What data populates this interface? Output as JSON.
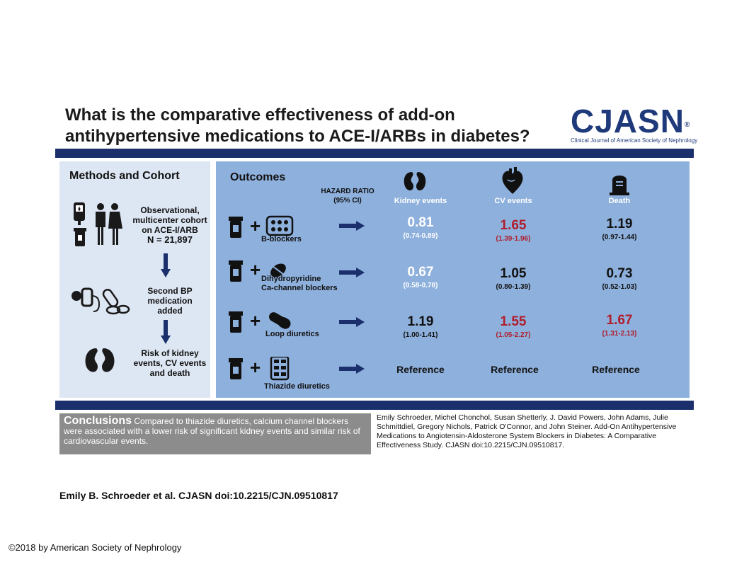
{
  "title": {
    "line1": "What is the comparative effectiveness of add-on",
    "line2": "antihypertensive medications to ACE-I/ARBs in diabetes?"
  },
  "logo": {
    "name": "CJASN",
    "subtitle": "Clinical Journal of American Society of Nephrology"
  },
  "methods": {
    "heading": "Methods and Cohort",
    "step1": [
      "Observational,",
      "multicenter cohort",
      "on ACE-I/ARB",
      "N = 21,897"
    ],
    "step2": [
      "Second BP",
      "medication",
      "added"
    ],
    "step3": [
      "Risk of kidney",
      "events, CV events",
      "and death"
    ]
  },
  "outcomes": {
    "heading": "Outcomes",
    "hazard_label": "HAZARD RATIO",
    "hazard_ci": "(95% CI)",
    "columns": [
      "Kidney events",
      "CV events",
      "Death"
    ],
    "rows": [
      {
        "drug": "B-blockers",
        "drug2": "",
        "kidney": {
          "v": "0.81",
          "ci": "(0.74-0.89)"
        },
        "cv": {
          "v": "1.65",
          "ci": "(1.39-1.96)"
        },
        "death": {
          "v": "1.19",
          "ci": "(0.97-1.44)"
        }
      },
      {
        "drug": "Dihydropyridine",
        "drug2": "Ca-channel blockers",
        "kidney": {
          "v": "0.67",
          "ci": "(0.58-0.78)"
        },
        "cv": {
          "v": "1.05",
          "ci": "(0.80-1.39)"
        },
        "death": {
          "v": "0.73",
          "ci": "(0.52-1.03)"
        }
      },
      {
        "drug": "Loop diuretics",
        "drug2": "",
        "kidney": {
          "v": "1.19",
          "ci": "(1.00-1.41)"
        },
        "cv": {
          "v": "1.55",
          "ci": "(1.05-2.27)"
        },
        "death": {
          "v": "1.67",
          "ci": "(1.31-2.13)"
        }
      },
      {
        "drug": "Thiazide diuretics",
        "drug2": "",
        "kidney": {
          "v": "Reference",
          "ci": ""
        },
        "cv": {
          "v": "Reference",
          "ci": ""
        },
        "death": {
          "v": "Reference",
          "ci": ""
        }
      }
    ]
  },
  "conclusions": {
    "heading": "Conclusions",
    "text": "Compared to thiazide diuretics, calcium channel blockers were associated with a lower risk of significant kidney events and similar risk of cardiovascular events."
  },
  "citation": "Emily Schroeder, Michel Chonchol, Susan Shetterly, J. David Powers, John Adams, Julie Schmittdiel, Gregory Nichols, Patrick O'Connor, and John Steiner. Add-On Antihypertensive Medications to Angiotensin-Aldosterone System Blockers in Diabetes: A Comparative Effectiveness Study. CJASN doi:10.2215/CJN.09510817.",
  "footer": "Emily B. Schroeder et al. CJASN doi:10.2215/CJN.09510817",
  "copyright": "©2018 by American Society of Nephrology",
  "colors": {
    "navy": "#1a2f6b",
    "outcome_bg": "#8eb0dc",
    "methods_bg": "#dde6f3",
    "red": "#b01e2d"
  }
}
